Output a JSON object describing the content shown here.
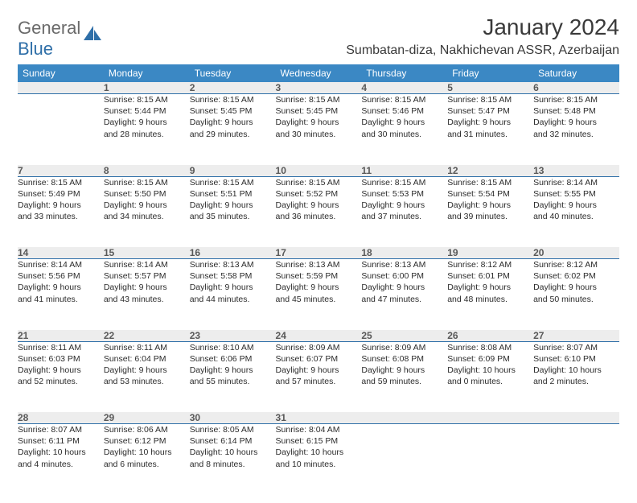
{
  "logo": {
    "word1": "General",
    "word2": "Blue"
  },
  "title": "January 2024",
  "location": "Sumbatan-diza, Nakhichevan ASSR, Azerbaijan",
  "colors": {
    "header_blue": "#3b88c4",
    "accent_line": "#2f6fa8",
    "daynum_bg": "#ededed",
    "text_gray": "#3a3a3a"
  },
  "day_headers": [
    "Sunday",
    "Monday",
    "Tuesday",
    "Wednesday",
    "Thursday",
    "Friday",
    "Saturday"
  ],
  "weeks": [
    {
      "nums": [
        "",
        "1",
        "2",
        "3",
        "4",
        "5",
        "6"
      ],
      "cells": [
        null,
        {
          "sunrise": "Sunrise: 8:15 AM",
          "sunset": "Sunset: 5:44 PM",
          "dl1": "Daylight: 9 hours",
          "dl2": "and 28 minutes."
        },
        {
          "sunrise": "Sunrise: 8:15 AM",
          "sunset": "Sunset: 5:45 PM",
          "dl1": "Daylight: 9 hours",
          "dl2": "and 29 minutes."
        },
        {
          "sunrise": "Sunrise: 8:15 AM",
          "sunset": "Sunset: 5:45 PM",
          "dl1": "Daylight: 9 hours",
          "dl2": "and 30 minutes."
        },
        {
          "sunrise": "Sunrise: 8:15 AM",
          "sunset": "Sunset: 5:46 PM",
          "dl1": "Daylight: 9 hours",
          "dl2": "and 30 minutes."
        },
        {
          "sunrise": "Sunrise: 8:15 AM",
          "sunset": "Sunset: 5:47 PM",
          "dl1": "Daylight: 9 hours",
          "dl2": "and 31 minutes."
        },
        {
          "sunrise": "Sunrise: 8:15 AM",
          "sunset": "Sunset: 5:48 PM",
          "dl1": "Daylight: 9 hours",
          "dl2": "and 32 minutes."
        }
      ]
    },
    {
      "nums": [
        "7",
        "8",
        "9",
        "10",
        "11",
        "12",
        "13"
      ],
      "cells": [
        {
          "sunrise": "Sunrise: 8:15 AM",
          "sunset": "Sunset: 5:49 PM",
          "dl1": "Daylight: 9 hours",
          "dl2": "and 33 minutes."
        },
        {
          "sunrise": "Sunrise: 8:15 AM",
          "sunset": "Sunset: 5:50 PM",
          "dl1": "Daylight: 9 hours",
          "dl2": "and 34 minutes."
        },
        {
          "sunrise": "Sunrise: 8:15 AM",
          "sunset": "Sunset: 5:51 PM",
          "dl1": "Daylight: 9 hours",
          "dl2": "and 35 minutes."
        },
        {
          "sunrise": "Sunrise: 8:15 AM",
          "sunset": "Sunset: 5:52 PM",
          "dl1": "Daylight: 9 hours",
          "dl2": "and 36 minutes."
        },
        {
          "sunrise": "Sunrise: 8:15 AM",
          "sunset": "Sunset: 5:53 PM",
          "dl1": "Daylight: 9 hours",
          "dl2": "and 37 minutes."
        },
        {
          "sunrise": "Sunrise: 8:15 AM",
          "sunset": "Sunset: 5:54 PM",
          "dl1": "Daylight: 9 hours",
          "dl2": "and 39 minutes."
        },
        {
          "sunrise": "Sunrise: 8:14 AM",
          "sunset": "Sunset: 5:55 PM",
          "dl1": "Daylight: 9 hours",
          "dl2": "and 40 minutes."
        }
      ]
    },
    {
      "nums": [
        "14",
        "15",
        "16",
        "17",
        "18",
        "19",
        "20"
      ],
      "cells": [
        {
          "sunrise": "Sunrise: 8:14 AM",
          "sunset": "Sunset: 5:56 PM",
          "dl1": "Daylight: 9 hours",
          "dl2": "and 41 minutes."
        },
        {
          "sunrise": "Sunrise: 8:14 AM",
          "sunset": "Sunset: 5:57 PM",
          "dl1": "Daylight: 9 hours",
          "dl2": "and 43 minutes."
        },
        {
          "sunrise": "Sunrise: 8:13 AM",
          "sunset": "Sunset: 5:58 PM",
          "dl1": "Daylight: 9 hours",
          "dl2": "and 44 minutes."
        },
        {
          "sunrise": "Sunrise: 8:13 AM",
          "sunset": "Sunset: 5:59 PM",
          "dl1": "Daylight: 9 hours",
          "dl2": "and 45 minutes."
        },
        {
          "sunrise": "Sunrise: 8:13 AM",
          "sunset": "Sunset: 6:00 PM",
          "dl1": "Daylight: 9 hours",
          "dl2": "and 47 minutes."
        },
        {
          "sunrise": "Sunrise: 8:12 AM",
          "sunset": "Sunset: 6:01 PM",
          "dl1": "Daylight: 9 hours",
          "dl2": "and 48 minutes."
        },
        {
          "sunrise": "Sunrise: 8:12 AM",
          "sunset": "Sunset: 6:02 PM",
          "dl1": "Daylight: 9 hours",
          "dl2": "and 50 minutes."
        }
      ]
    },
    {
      "nums": [
        "21",
        "22",
        "23",
        "24",
        "25",
        "26",
        "27"
      ],
      "cells": [
        {
          "sunrise": "Sunrise: 8:11 AM",
          "sunset": "Sunset: 6:03 PM",
          "dl1": "Daylight: 9 hours",
          "dl2": "and 52 minutes."
        },
        {
          "sunrise": "Sunrise: 8:11 AM",
          "sunset": "Sunset: 6:04 PM",
          "dl1": "Daylight: 9 hours",
          "dl2": "and 53 minutes."
        },
        {
          "sunrise": "Sunrise: 8:10 AM",
          "sunset": "Sunset: 6:06 PM",
          "dl1": "Daylight: 9 hours",
          "dl2": "and 55 minutes."
        },
        {
          "sunrise": "Sunrise: 8:09 AM",
          "sunset": "Sunset: 6:07 PM",
          "dl1": "Daylight: 9 hours",
          "dl2": "and 57 minutes."
        },
        {
          "sunrise": "Sunrise: 8:09 AM",
          "sunset": "Sunset: 6:08 PM",
          "dl1": "Daylight: 9 hours",
          "dl2": "and 59 minutes."
        },
        {
          "sunrise": "Sunrise: 8:08 AM",
          "sunset": "Sunset: 6:09 PM",
          "dl1": "Daylight: 10 hours",
          "dl2": "and 0 minutes."
        },
        {
          "sunrise": "Sunrise: 8:07 AM",
          "sunset": "Sunset: 6:10 PM",
          "dl1": "Daylight: 10 hours",
          "dl2": "and 2 minutes."
        }
      ]
    },
    {
      "nums": [
        "28",
        "29",
        "30",
        "31",
        "",
        "",
        ""
      ],
      "cells": [
        {
          "sunrise": "Sunrise: 8:07 AM",
          "sunset": "Sunset: 6:11 PM",
          "dl1": "Daylight: 10 hours",
          "dl2": "and 4 minutes."
        },
        {
          "sunrise": "Sunrise: 8:06 AM",
          "sunset": "Sunset: 6:12 PM",
          "dl1": "Daylight: 10 hours",
          "dl2": "and 6 minutes."
        },
        {
          "sunrise": "Sunrise: 8:05 AM",
          "sunset": "Sunset: 6:14 PM",
          "dl1": "Daylight: 10 hours",
          "dl2": "and 8 minutes."
        },
        {
          "sunrise": "Sunrise: 8:04 AM",
          "sunset": "Sunset: 6:15 PM",
          "dl1": "Daylight: 10 hours",
          "dl2": "and 10 minutes."
        },
        null,
        null,
        null
      ]
    }
  ]
}
